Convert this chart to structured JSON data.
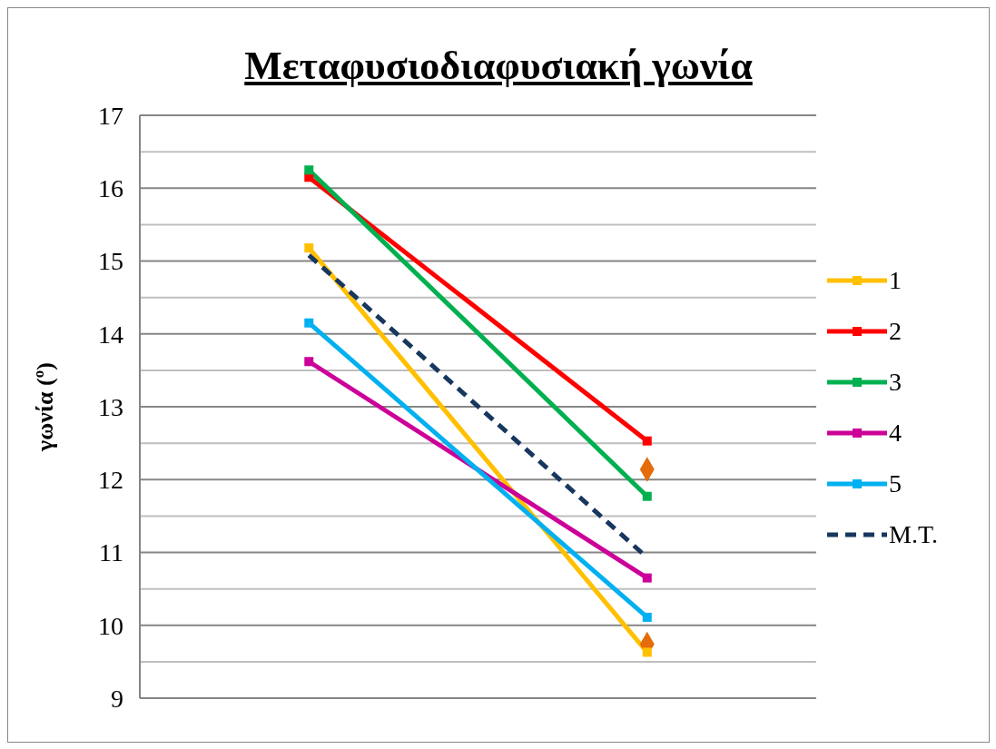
{
  "chart_data": {
    "type": "line",
    "title": "Μεταφυσιοδιαφυσιακή γωνία",
    "ylabel": "γωνία (º)",
    "categories": [
      null,
      null
    ],
    "series": [
      {
        "name": "1",
        "color": "#ffc000",
        "values": [
          15.18,
          9.63
        ]
      },
      {
        "name": "2",
        "color": "#ff0000",
        "values": [
          16.15,
          12.53
        ]
      },
      {
        "name": "3",
        "color": "#00b050",
        "values": [
          16.25,
          11.77
        ]
      },
      {
        "name": "4",
        "color": "#cc0099",
        "values": [
          13.62,
          10.65
        ]
      },
      {
        "name": "5",
        "color": "#00b0f0",
        "values": [
          14.15,
          10.11
        ]
      },
      {
        "name": "M.T.",
        "color": "#17375e",
        "values": [
          15.08,
          10.93
        ],
        "line_style": "dashed",
        "marker": "none"
      },
      {
        "type": "scatter",
        "color": "#e46c0a",
        "values": [
          null,
          12.14
        ],
        "marker": "diamond"
      },
      {
        "type": "scatter",
        "color": "#e46c0a",
        "values": [
          null,
          9.74
        ],
        "marker": "diamond"
      }
    ],
    "marker": "square",
    "line_style": "solid",
    "ylim": [
      9,
      17
    ],
    "yticks": [
      9,
      {
        "value": 9.5,
        "label": null
      },
      10,
      {
        "value": 10.5,
        "label": null
      },
      11,
      {
        "value": 11.5,
        "label": null
      },
      12,
      {
        "value": 12.5,
        "label": null
      },
      13,
      {
        "value": 13.5,
        "label": null
      },
      14,
      {
        "value": 14.5,
        "label": null
      },
      15,
      {
        "value": 15.5,
        "label": null
      },
      16,
      {
        "value": 16.5,
        "label": null
      },
      17
    ],
    "grid": true,
    "legend": "right"
  }
}
